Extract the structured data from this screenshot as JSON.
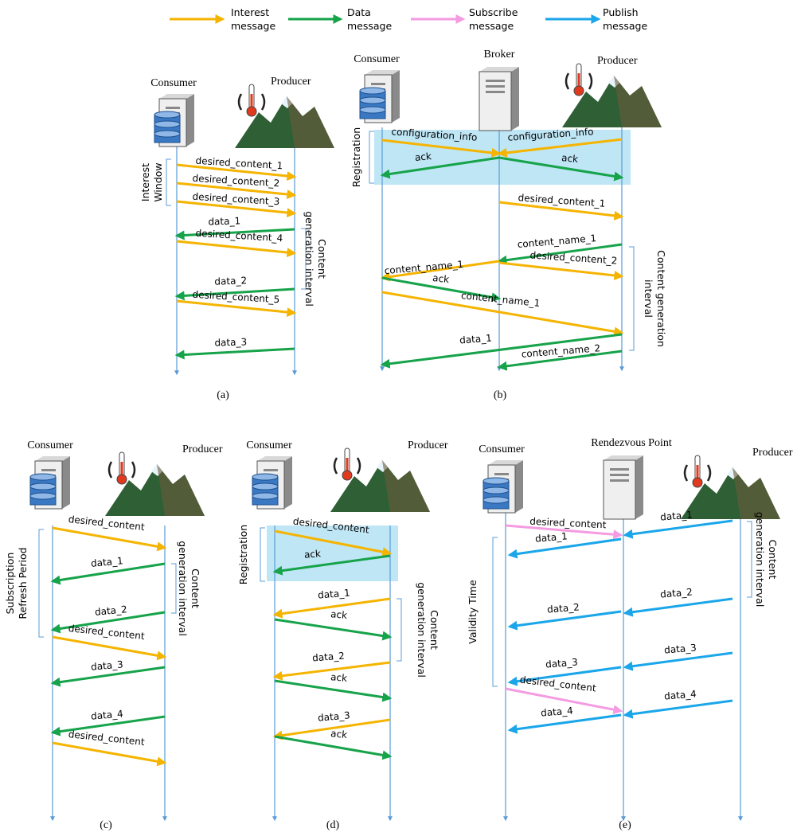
{
  "legend": [
    {
      "label": [
        "Interest",
        "message"
      ],
      "color": "#f5b400"
    },
    {
      "label": [
        "Data",
        "message"
      ],
      "color": "#16a34a"
    },
    {
      "label": [
        "Subscribe",
        "message"
      ],
      "color": "#f49be2"
    },
    {
      "label": [
        "Publish",
        "message"
      ],
      "color": "#1ba6ea"
    }
  ],
  "panels": [
    {
      "caption": "(a)",
      "actors": [
        "Consumer",
        "Producer"
      ],
      "messages": [
        "desired_content_1",
        "desired_content_2",
        "desired_content_3",
        "data_1",
        "desired_content_4",
        "data_2",
        "desired_content_5",
        "data_3"
      ],
      "brackets": [
        [
          "Interest",
          "Window"
        ],
        [
          "Content",
          "generation interval"
        ]
      ]
    },
    {
      "caption": "(b)",
      "actors": [
        "Consumer",
        "Broker",
        "Producer"
      ],
      "messages": [
        "configuration_info",
        "configuration_info",
        "ack",
        "ack",
        "desired_content_1",
        "content_name_1",
        "desired_content_2",
        "content_name_1",
        "ack",
        "content_name_1",
        "data_1",
        "content_name_2"
      ],
      "brackets": [
        [
          "Registration"
        ],
        [
          "Content generation",
          "interval"
        ]
      ]
    },
    {
      "caption": "(c)",
      "actors": [
        "Consumer",
        "Producer"
      ],
      "messages": [
        "desired_content",
        "data_1",
        "data_2",
        "desired_content",
        "data_3",
        "data_4",
        "desired_content"
      ],
      "brackets": [
        [
          "Subscription",
          "Refresh Period"
        ],
        [
          "Content",
          "generation interval"
        ]
      ]
    },
    {
      "caption": "(d)",
      "actors": [
        "Consumer",
        "Producer"
      ],
      "messages": [
        "desired_content",
        "ack",
        "data_1",
        "ack",
        "data_2",
        "ack",
        "data_3",
        "ack"
      ],
      "brackets": [
        [
          "Registration"
        ],
        [
          "Content",
          "generation interval"
        ]
      ]
    },
    {
      "caption": "(e)",
      "actors": [
        "Consumer",
        "Rendezvous Point",
        "Producer"
      ],
      "messages": [
        "desired_content",
        "data_1",
        "data_1",
        "data_2",
        "data_2",
        "data_3",
        "data_3",
        "desired_content",
        "data_4",
        "data_4"
      ],
      "brackets": [
        [
          "Validity Time"
        ],
        [
          "Content",
          "generation interval"
        ]
      ]
    }
  ]
}
